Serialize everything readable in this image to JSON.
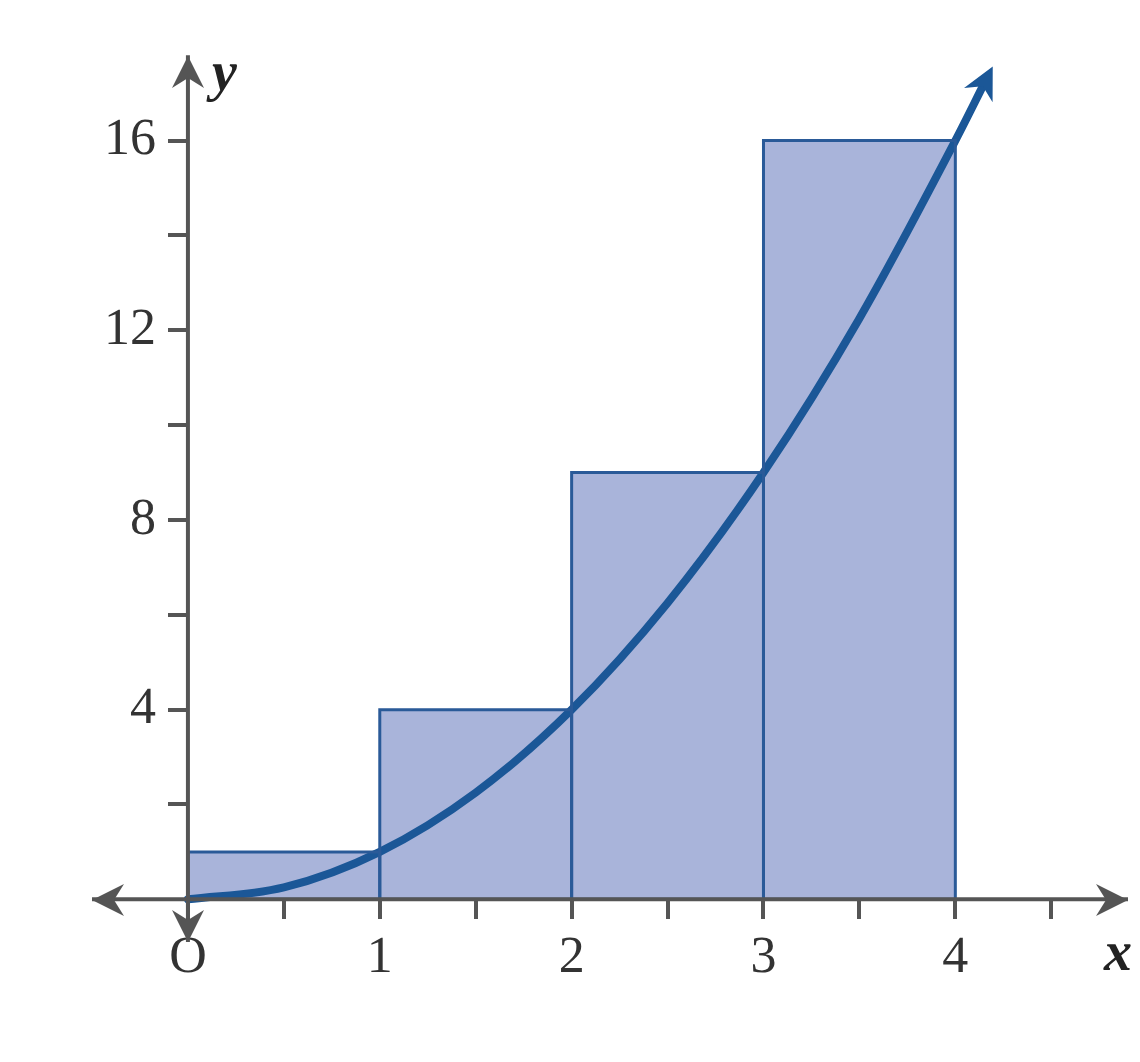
{
  "chart_data": {
    "type": "histogram",
    "xlabel": "x",
    "ylabel": "y",
    "bins": [
      0,
      1,
      2,
      3,
      4
    ],
    "values": [
      1,
      4,
      9,
      16
    ],
    "color": "#a9b4da",
    "series": [
      {
        "type": "line",
        "x": [
          0,
          0.5,
          1,
          1.5,
          2,
          2.5,
          3,
          3.5,
          4,
          4.15
        ],
        "values": [
          0,
          0.25,
          1,
          2.25,
          4,
          6.25,
          9,
          12.25,
          16,
          17.2
        ],
        "color": "#1b5797"
      }
    ],
    "xlim": [
      -0.5,
      4.9
    ],
    "ylim": [
      -0.9,
      17.8
    ],
    "xticks": [
      {
        "value": 0,
        "label": "O"
      },
      {
        "value": 0.5,
        "label": null
      },
      1,
      {
        "value": 1.5,
        "label": null
      },
      2,
      {
        "value": 2.5,
        "label": null
      },
      3,
      {
        "value": 3.5,
        "label": null
      },
      4,
      {
        "value": 4.5,
        "label": null
      }
    ],
    "yticks": [
      {
        "value": 2,
        "label": null
      },
      4,
      {
        "value": 6,
        "label": null
      },
      8,
      {
        "value": 10,
        "label": null
      },
      12,
      {
        "value": 14,
        "label": null
      },
      16
    ],
    "grid": false,
    "legend": false,
    "marker": "none",
    "line_style": "solid"
  }
}
